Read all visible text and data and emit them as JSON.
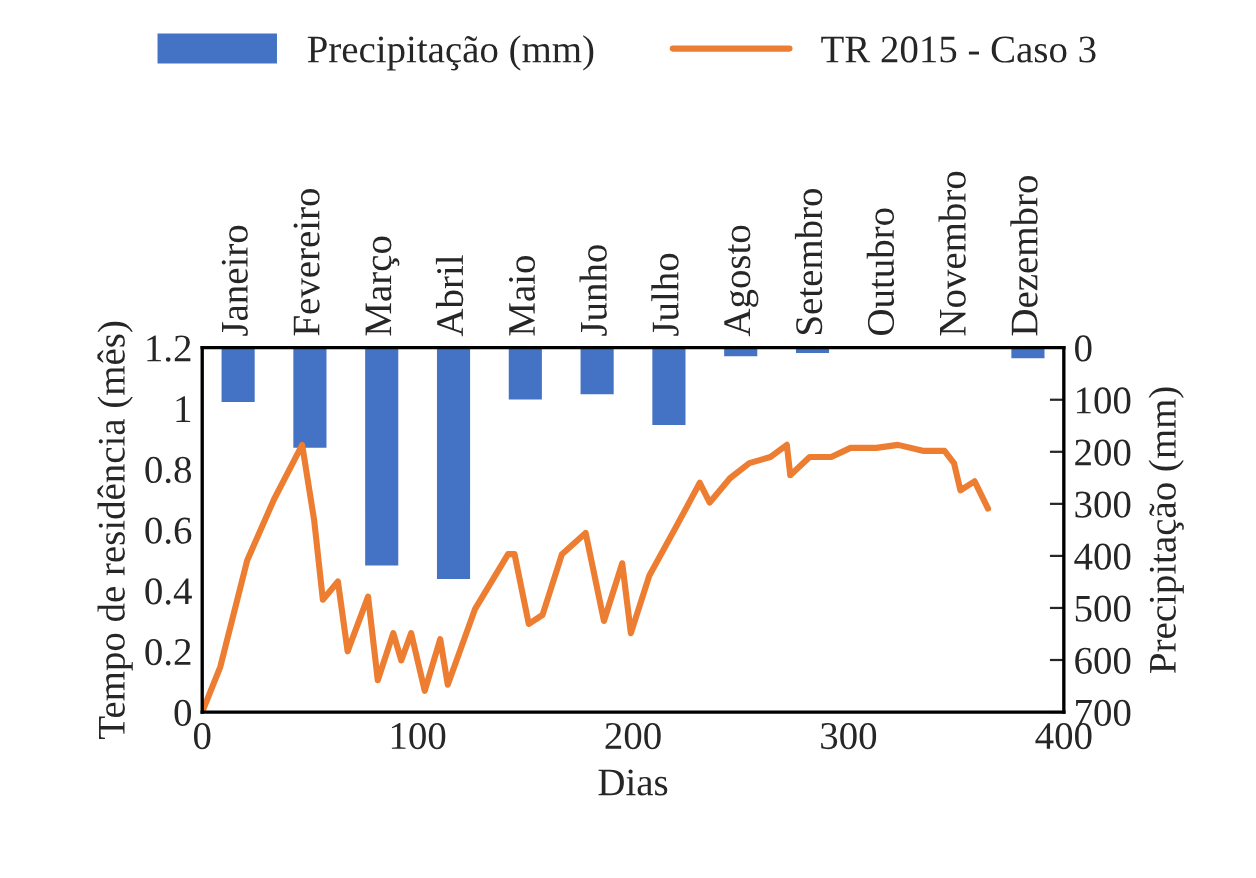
{
  "chart_data": [
    {
      "type": "bar",
      "ylabel": "Precipitação (mm)",
      "categories": [
        "Janeiro",
        "Fevereiro",
        "Março",
        "Abril",
        "Maio",
        "Junho",
        "Julho",
        "Agosto",
        "Setembro",
        "Outubro",
        "Novembro",
        "Dezembro"
      ],
      "series": [
        {
          "name": "Precipitação (mm)",
          "color": "#4472c4",
          "values": [
            107,
            195,
            421,
            447,
            102,
            92,
            151,
            19,
            13,
            null,
            null,
            23
          ]
        }
      ],
      "ylim": [
        700,
        0
      ],
      "yticks": [
        0,
        100,
        200,
        300,
        400,
        500,
        600,
        700
      ],
      "grid": false,
      "legend": "top"
    },
    {
      "type": "line",
      "xlabel": "Dias",
      "ylabel": "Tempo de residência (mês)",
      "series": [
        {
          "name": "TR 2015 - Caso 3",
          "color": "#ed7d31",
          "x": [
            0,
            8.4,
            20.9,
            33.3,
            46.4,
            52,
            56,
            63,
            67.5,
            77,
            81.5,
            88.7,
            92.4,
            97,
            103.3,
            110.5,
            114,
            126.7,
            142,
            145,
            151.6,
            158,
            167,
            178,
            186.5,
            195,
            199,
            207.6,
            220,
            231,
            235.6,
            245,
            254,
            263.8,
            271.4,
            273,
            282,
            292,
            301,
            313,
            323,
            335,
            344.6,
            349,
            352,
            358.6,
            364.8
          ],
          "values": [
            0,
            0.149,
            0.5,
            0.7,
            0.88,
            0.63,
            0.37,
            0.43,
            0.2,
            0.38,
            0.105,
            0.26,
            0.17,
            0.26,
            0.07,
            0.24,
            0.09,
            0.34,
            0.52,
            0.52,
            0.29,
            0.32,
            0.52,
            0.59,
            0.3,
            0.49,
            0.26,
            0.45,
            0.61,
            0.755,
            0.69,
            0.77,
            0.82,
            0.84,
            0.88,
            0.78,
            0.84,
            0.84,
            0.87,
            0.87,
            0.88,
            0.86,
            0.86,
            0.82,
            0.73,
            0.76,
            0.67
          ]
        }
      ],
      "xlim": [
        0,
        400
      ],
      "xticks": [
        0,
        100,
        200,
        300,
        400
      ],
      "ylim": [
        0,
        1.2
      ],
      "yticks": [
        0,
        {
          "value": 0.2,
          "label": "0.2"
        },
        {
          "value": 0.4,
          "label": "0.4"
        },
        {
          "value": 0.6,
          "label": "0.6"
        },
        {
          "value": 0.8,
          "label": "0.8"
        },
        1,
        {
          "value": 1.2,
          "label": "1.2"
        }
      ],
      "grid": false,
      "legend": "top"
    }
  ]
}
